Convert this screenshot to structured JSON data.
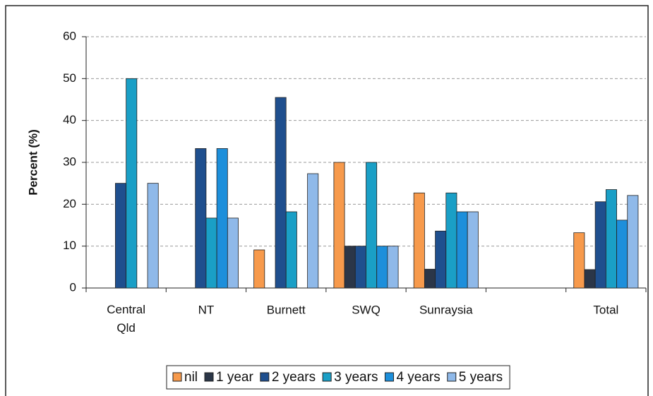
{
  "chart_data": {
    "type": "bar",
    "y_label": "Percent (%)",
    "categories": [
      "Central Qld",
      "NT",
      "Burnett",
      "SWQ",
      "Sunraysia",
      null,
      "Total"
    ],
    "series": [
      {
        "name": "nil",
        "color": "#f79a4c",
        "values": [
          0,
          0,
          9.1,
          30,
          22.7,
          0,
          13.2
        ]
      },
      {
        "name": "1 year",
        "color": "#2b3648",
        "values": [
          0,
          0,
          0,
          10,
          4.5,
          0,
          4.4
        ]
      },
      {
        "name": "2 years",
        "color": "#1f4f8e",
        "values": [
          25,
          33.3,
          45.5,
          10,
          13.6,
          0,
          20.6
        ]
      },
      {
        "name": "3 years",
        "color": "#1a9fc6",
        "values": [
          50,
          16.7,
          18.2,
          30,
          22.7,
          0,
          23.5
        ]
      },
      {
        "name": "4 years",
        "color": "#1d8fdb",
        "values": [
          0,
          33.3,
          0,
          10,
          18.2,
          0,
          16.2
        ]
      },
      {
        "name": "5 years",
        "color": "#8fb9e9",
        "values": [
          25,
          16.7,
          27.3,
          10,
          18.2,
          0,
          22.1
        ]
      }
    ],
    "ylim": [
      0,
      60
    ],
    "yticks": [
      0,
      10,
      20,
      30,
      40,
      50,
      60
    ],
    "grid": true
  }
}
